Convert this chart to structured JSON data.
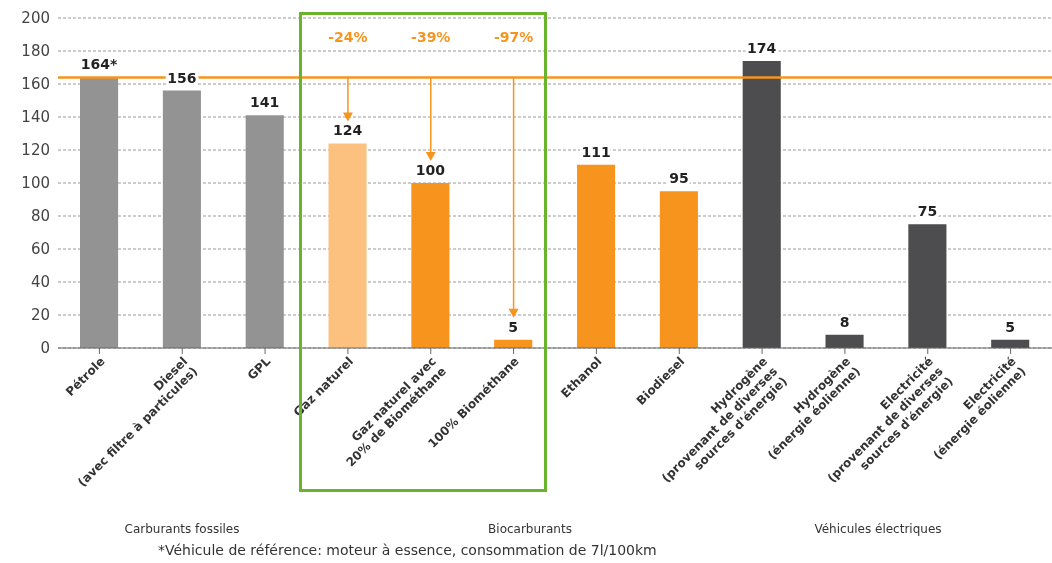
{
  "chart_data": {
    "type": "bar",
    "categories": [
      "Pétrole",
      "Diesel\n(avec filtre à particules)",
      "GPL",
      "Gaz naturel",
      "Gaz naturel avec\n20% de Biométhane",
      "100% Biométhane",
      "Ethanol",
      "Biodiesel",
      "Hydrogène\n(provenant de diverses\nsources d'énergie)",
      "Hydrogène\n(énergie éolienne)",
      "Electricité\n(provenant de diverses\nsources d'énergie)",
      "Electricité\n(énergie éolienne)"
    ],
    "values": [
      164,
      156,
      141,
      124,
      100,
      5,
      111,
      95,
      174,
      8,
      75,
      5
    ],
    "colors": [
      "#939393",
      "#939393",
      "#939393",
      "#fdc17f",
      "#f7941d",
      "#f7941d",
      "#f7941d",
      "#f7941d",
      "#4d4d4f",
      "#4d4d4f",
      "#4d4d4f",
      "#4d4d4f"
    ],
    "value_labels": [
      "164*",
      "156",
      "141",
      "124",
      "100",
      "5",
      "111",
      "95",
      "174",
      "8",
      "75",
      "5"
    ],
    "ylim": [
      0,
      200
    ],
    "yticks": [
      0,
      20,
      40,
      60,
      80,
      100,
      120,
      140,
      160,
      180,
      200
    ],
    "grid": "y",
    "ref_lines": [
      {
        "axis": "y",
        "value": 164,
        "color": "#f7941d"
      }
    ],
    "annotations": [
      "-24%",
      "-39%",
      "-97%",
      "Carburants fossiles",
      "Biocarburants",
      "Véhicules électriques",
      "*Véhicule de référence: moteur à essence, consommation de 7l/100km"
    ]
  }
}
